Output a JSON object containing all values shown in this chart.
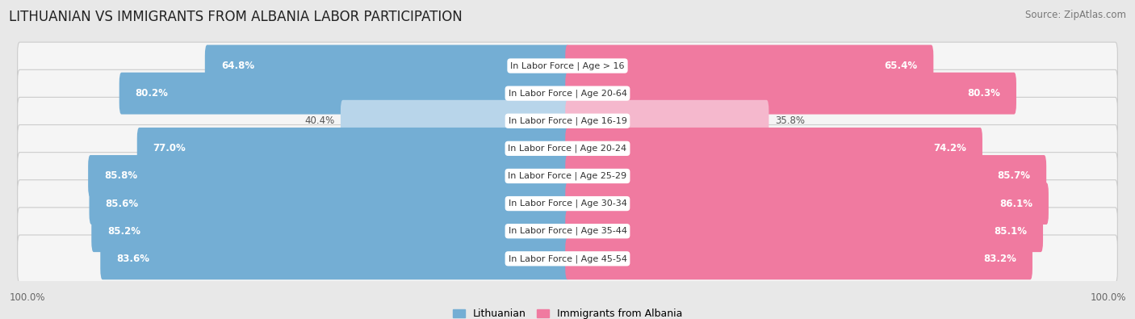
{
  "title": "LITHUANIAN VS IMMIGRANTS FROM ALBANIA LABOR PARTICIPATION",
  "source": "Source: ZipAtlas.com",
  "categories": [
    "In Labor Force | Age > 16",
    "In Labor Force | Age 20-64",
    "In Labor Force | Age 16-19",
    "In Labor Force | Age 20-24",
    "In Labor Force | Age 25-29",
    "In Labor Force | Age 30-34",
    "In Labor Force | Age 35-44",
    "In Labor Force | Age 45-54"
  ],
  "lithuanian_values": [
    64.8,
    80.2,
    40.4,
    77.0,
    85.8,
    85.6,
    85.2,
    83.6
  ],
  "albanian_values": [
    65.4,
    80.3,
    35.8,
    74.2,
    85.7,
    86.1,
    85.1,
    83.2
  ],
  "low_value_threshold": 50.0,
  "blue_color": "#74aed4",
  "blue_light_color": "#b8d5ea",
  "pink_color": "#f07aa0",
  "pink_light_color": "#f5b8cd",
  "bg_color": "#e8e8e8",
  "row_bg_color": "#f5f5f5",
  "row_border_color": "#cccccc",
  "white_label_bg": "#ffffff",
  "title_fontsize": 12,
  "source_fontsize": 8.5,
  "bar_value_fontsize": 8.5,
  "cat_label_fontsize": 8,
  "legend_fontsize": 9,
  "bottom_label": "100.0%",
  "legend_left": "Lithuanian",
  "legend_right": "Immigrants from Albania"
}
